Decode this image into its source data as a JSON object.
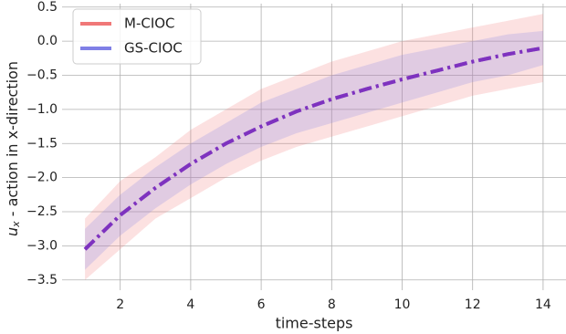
{
  "chart_data": {
    "type": "line_band",
    "x": [
      1,
      2,
      3,
      4,
      5,
      6,
      7,
      8,
      9,
      10,
      11,
      12,
      13,
      14
    ],
    "series": [
      {
        "name": "M-CIOC",
        "color": "#f07878",
        "values": [
          -3.05,
          -2.55,
          -2.15,
          -1.8,
          -1.5,
          -1.25,
          -1.03,
          -0.85,
          -0.7,
          -0.56,
          -0.43,
          -0.3,
          -0.19,
          -0.1
        ],
        "upper": [
          -2.6,
          -2.05,
          -1.7,
          -1.3,
          -1.0,
          -0.7,
          -0.5,
          -0.3,
          -0.15,
          0.0,
          0.1,
          0.2,
          0.3,
          0.4
        ],
        "lower": [
          -3.5,
          -3.05,
          -2.6,
          -2.3,
          -2.0,
          -1.75,
          -1.55,
          -1.4,
          -1.25,
          -1.1,
          -0.95,
          -0.8,
          -0.7,
          -0.6
        ]
      },
      {
        "name": "GS-CIOC",
        "color": "#7f7fe6",
        "values": [
          -3.05,
          -2.55,
          -2.15,
          -1.8,
          -1.5,
          -1.25,
          -1.03,
          -0.85,
          -0.7,
          -0.56,
          -0.43,
          -0.3,
          -0.19,
          -0.1
        ],
        "upper": [
          -2.75,
          -2.25,
          -1.85,
          -1.5,
          -1.2,
          -0.9,
          -0.7,
          -0.5,
          -0.35,
          -0.2,
          -0.1,
          0.0,
          0.1,
          0.15
        ],
        "lower": [
          -3.35,
          -2.85,
          -2.45,
          -2.1,
          -1.8,
          -1.55,
          -1.35,
          -1.2,
          -1.05,
          -0.9,
          -0.75,
          -0.6,
          -0.5,
          -0.35
        ]
      }
    ],
    "line_color": "#7b2fbe",
    "x_label": "time-steps",
    "y_label": {
      "symbol": "u",
      "subscript": "x",
      "text": " - action in x-direction"
    },
    "xlim": [
      0.35,
      14.65
    ],
    "ylim": [
      -3.65,
      0.55
    ],
    "xticks": [
      2,
      4,
      6,
      8,
      10,
      12,
      14
    ],
    "yticks": [
      {
        "value": -3.5,
        "label": "−3.5"
      },
      {
        "value": -3.0,
        "label": "−3.0"
      },
      {
        "value": -2.5,
        "label": "−2.5"
      },
      {
        "value": -2.0,
        "label": "−2.0"
      },
      {
        "value": -1.5,
        "label": "−1.5"
      },
      {
        "value": -1.0,
        "label": "−1.0"
      },
      {
        "value": -0.5,
        "label": "−0.5"
      },
      {
        "value": 0.0,
        "label": "0.0"
      },
      0.5
    ],
    "grid": true,
    "legend": "upper-left"
  }
}
